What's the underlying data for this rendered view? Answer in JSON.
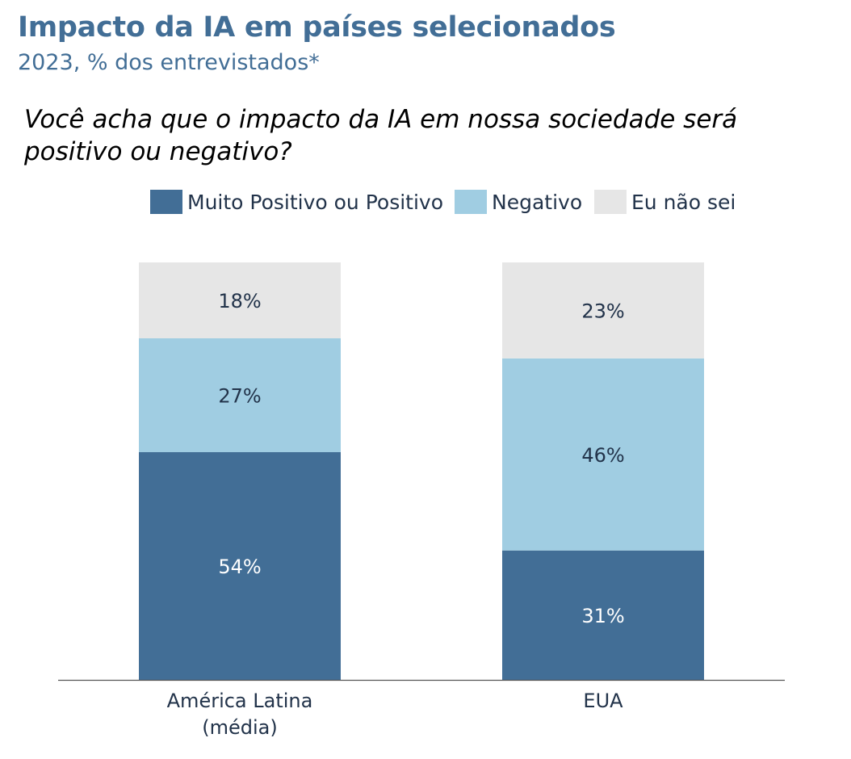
{
  "header": {
    "title": "Impacto da IA em países selecionados",
    "subtitle": "2023, % dos entrevistados*",
    "question": "Você acha que o impacto da IA em nossa sociedade será positivo ou negativo?"
  },
  "colors": {
    "positive": "#426e96",
    "negative": "#a0cde2",
    "unknown": "#e6e6e6",
    "label_dark": "#22334a",
    "label_light": "#ffffff"
  },
  "chart_data": {
    "type": "bar",
    "stacked": true,
    "title": "Impacto da IA em países selecionados",
    "subtitle": "2023, % dos entrevistados*",
    "categories": [
      "América Latina\n(média)",
      "EUA"
    ],
    "category_lines": [
      [
        "América Latina",
        "(média)"
      ],
      [
        "EUA"
      ]
    ],
    "series": [
      {
        "name": "Muito Positivo ou Positivo",
        "values": [
          54,
          31
        ],
        "labels": [
          "54%",
          "31%"
        ],
        "color": "#426e96",
        "label_color": "#ffffff"
      },
      {
        "name": "Negativo",
        "values": [
          27,
          46
        ],
        "labels": [
          "27%",
          "46%"
        ],
        "color": "#a0cde2",
        "label_color": "#22334a"
      },
      {
        "name": "Eu não sei",
        "values": [
          18,
          23
        ],
        "labels": [
          "18%",
          "23%"
        ],
        "color": "#e6e6e6",
        "label_color": "#22334a"
      }
    ],
    "ylim": [
      0,
      100
    ],
    "grid": false,
    "legend": "top-center"
  }
}
